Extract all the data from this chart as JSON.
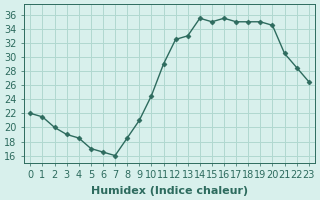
{
  "x": [
    0,
    1,
    2,
    3,
    4,
    5,
    6,
    7,
    8,
    9,
    10,
    11,
    12,
    13,
    14,
    15,
    16,
    17,
    18,
    19,
    20,
    21,
    22,
    23
  ],
  "y": [
    22,
    21.5,
    20,
    19,
    18.5,
    17,
    16.5,
    16,
    18.5,
    21,
    24.5,
    29,
    32.5,
    33,
    35.5,
    35,
    35.5,
    35,
    35,
    35,
    34.5,
    30.5,
    28.5,
    26.5
  ],
  "line_color": "#2d6b5e",
  "marker_color": "#2d6b5e",
  "bg_color": "#d8f0ec",
  "grid_color": "#b0d8d0",
  "xlabel": "Humidex (Indice chaleur)",
  "ylabel": "",
  "xlim": [
    -0.5,
    23.5
  ],
  "ylim": [
    15,
    37.5
  ],
  "yticks": [
    16,
    18,
    20,
    22,
    24,
    26,
    28,
    30,
    32,
    34,
    36
  ],
  "xticks": [
    0,
    1,
    2,
    3,
    4,
    5,
    6,
    7,
    8,
    9,
    10,
    11,
    12,
    13,
    14,
    15,
    16,
    17,
    18,
    19,
    20,
    21,
    22,
    23
  ],
  "font_color": "#2d6b5e",
  "font_size": 7,
  "xlabel_fontsize": 8
}
